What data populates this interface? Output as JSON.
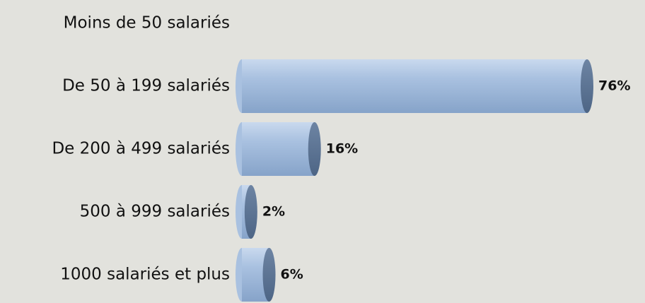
{
  "chart_data": {
    "type": "cylinder-bar",
    "categories": [
      "Moins de 50 salariés",
      "De 50 à 199 salariés",
      "De 200 à 499 salariés",
      "500 à 999 salariés",
      "1000 salariés et plus"
    ],
    "values": [
      null,
      76,
      16,
      2,
      6
    ],
    "value_labels": [
      null,
      "76%",
      "16%",
      "2%",
      "6%"
    ],
    "color": "#9db8d9"
  }
}
